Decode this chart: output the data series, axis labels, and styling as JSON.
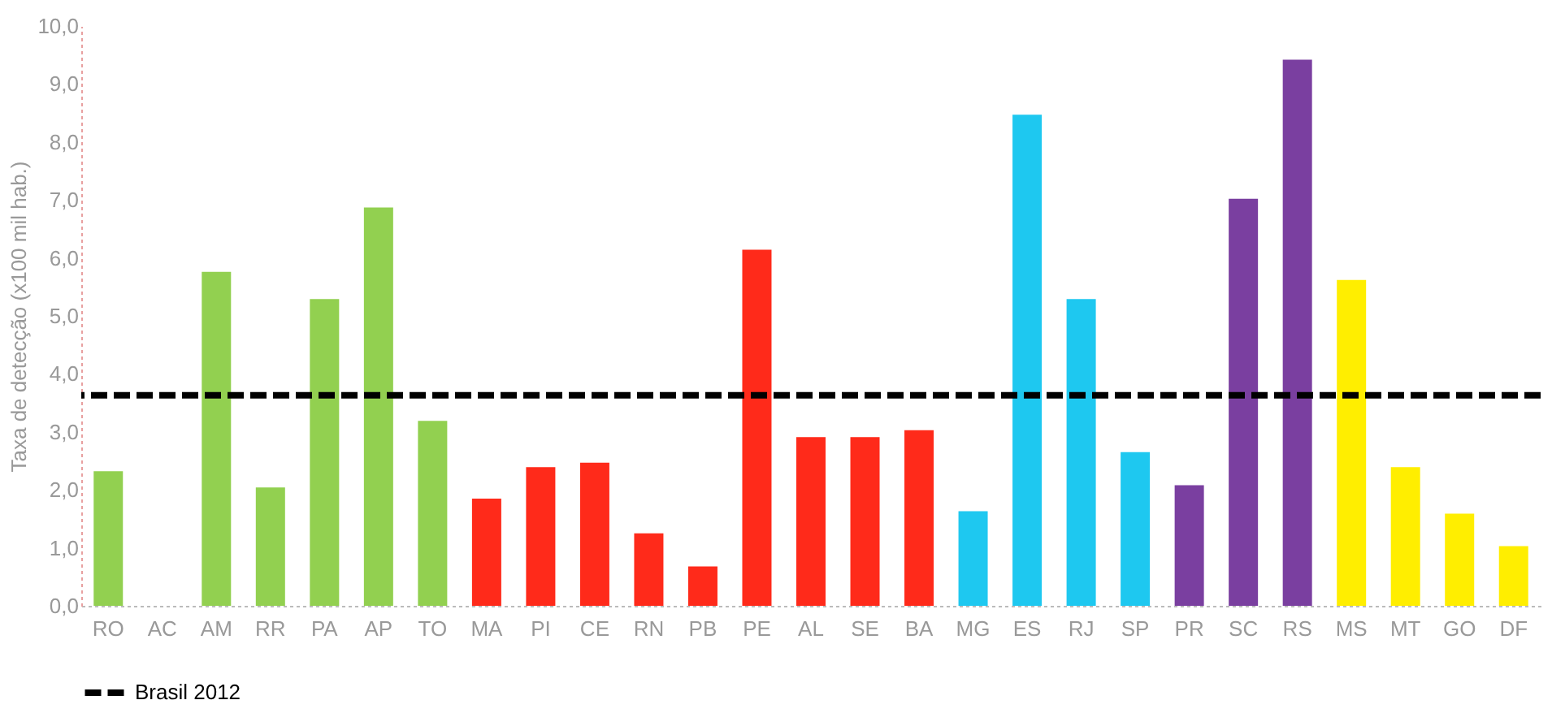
{
  "chart_data": {
    "type": "bar",
    "ylabel": "Taxa de detecção (x100 mil hab.)",
    "categories": [
      "RO",
      "AC",
      "AM",
      "RR",
      "PA",
      "AP",
      "TO",
      "MA",
      "PI",
      "CE",
      "RN",
      "PB",
      "PE",
      "AL",
      "SE",
      "BA",
      "MG",
      "ES",
      "RJ",
      "SP",
      "PR",
      "SC",
      "RS",
      "MS",
      "MT",
      "GO",
      "DF"
    ],
    "values": [
      2.32,
      0,
      5.76,
      2.04,
      5.29,
      6.87,
      3.19,
      1.85,
      2.39,
      2.47,
      1.25,
      0.68,
      6.14,
      2.91,
      2.91,
      3.03,
      1.63,
      8.47,
      5.29,
      2.65,
      2.08,
      7.02,
      9.42,
      5.62,
      2.39,
      1.59,
      1.03
    ],
    "colors": [
      "#92d050",
      "#92d050",
      "#92d050",
      "#92d050",
      "#92d050",
      "#92d050",
      "#92d050",
      "#ff2a1a",
      "#ff2a1a",
      "#ff2a1a",
      "#ff2a1a",
      "#ff2a1a",
      "#ff2a1a",
      "#ff2a1a",
      "#ff2a1a",
      "#ff2a1a",
      "#1ec8f0",
      "#1ec8f0",
      "#1ec8f0",
      "#1ec8f0",
      "#7a3fa0",
      "#7a3fa0",
      "#7a3fa0",
      "#ffee00",
      "#ffee00",
      "#ffee00",
      "#ffee00"
    ],
    "ylim": [
      0,
      10
    ],
    "yticks": [
      {
        "value": 0,
        "label": "0,0"
      },
      {
        "value": 1,
        "label": "1,0"
      },
      {
        "value": 2,
        "label": "2,0"
      },
      {
        "value": 3,
        "label": "3,0"
      },
      {
        "value": 4,
        "label": "4,0"
      },
      {
        "value": 5,
        "label": "5,0"
      },
      {
        "value": 6,
        "label": "6,0"
      },
      {
        "value": 7,
        "label": "7,0"
      },
      {
        "value": 8,
        "label": "8,0"
      },
      {
        "value": 9,
        "label": "9,0"
      },
      {
        "value": 10,
        "label": "10,0"
      }
    ],
    "ref_lines": [
      {
        "axis": "y",
        "value": 3.63,
        "label": "Brasil 2012",
        "color": "#000000",
        "line_style": "dashed"
      }
    ],
    "grid": false,
    "legend": "bottom"
  }
}
